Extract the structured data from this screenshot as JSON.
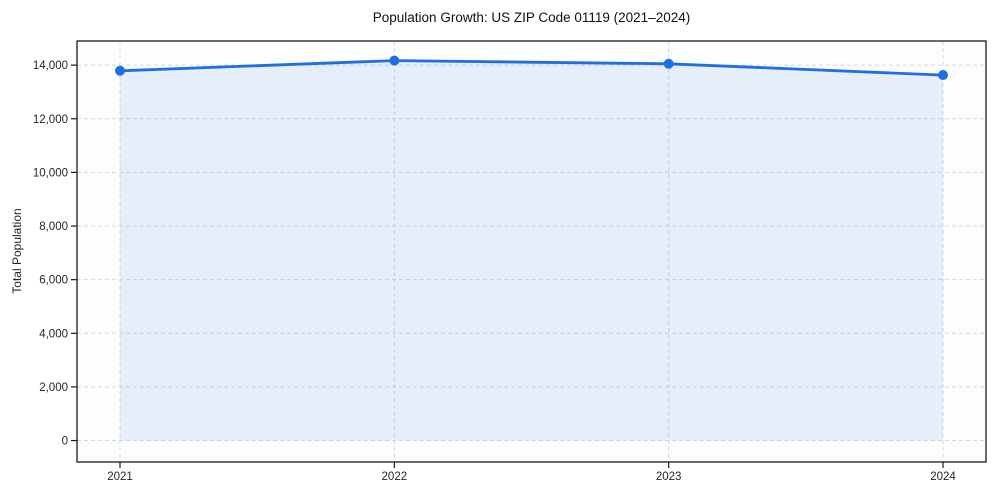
{
  "chart": {
    "title": "Population Growth: US ZIP Code 01119 (2021–2024)",
    "ylabel": "Total Population",
    "xlabel": ""
  },
  "chart_data": {
    "type": "area",
    "title": "Population Growth: US ZIP Code 01119 (2021–2024)",
    "xlabel": "",
    "ylabel": "Total Population",
    "x": [
      2021,
      2022,
      2023,
      2024
    ],
    "xtick_labels": [
      "2021",
      "2022",
      "2023",
      "2024"
    ],
    "values": [
      13790,
      14170,
      14050,
      13630
    ],
    "series_name": "Total Population",
    "yticks": [
      0,
      2000,
      4000,
      6000,
      8000,
      10000,
      12000,
      14000
    ],
    "ytick_labels": [
      "0",
      "2,000",
      "4,000",
      "6,000",
      "8,000",
      "10,000",
      "12,000",
      "14,000"
    ],
    "ylim": [
      -800,
      14900
    ],
    "grid": true,
    "grid_style": "dashed",
    "legend": "none",
    "marker": "circle",
    "colors": {
      "line": "#1f6fe0",
      "marker": "#1f6fe0",
      "fill": "rgba(31, 111, 224, 0.10)",
      "grid": "#d7d7d7",
      "spine": "#1a1a1a",
      "tick_text": "#262626",
      "plot_bg": "#fdfdfd",
      "figure_bg": "#ffffff"
    }
  }
}
